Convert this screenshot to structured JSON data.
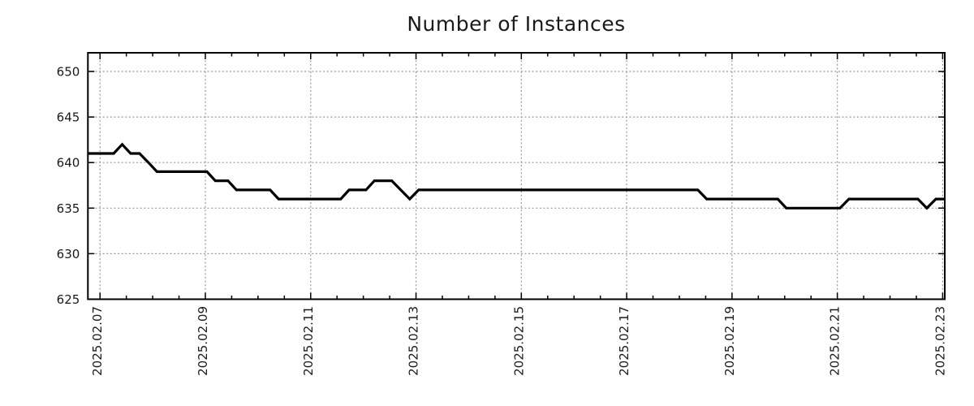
{
  "chart_data": {
    "type": "line",
    "title": "Number of Instances",
    "x_axis": {
      "tick_labels": [
        "2025.02.07",
        "2025.02.09",
        "2025.02.11",
        "2025.02.13",
        "2025.02.15",
        "2025.02.17",
        "2025.02.19",
        "2025.02.21",
        "2025.02.23"
      ],
      "tick_positions_days": [
        0,
        2,
        4,
        6,
        8,
        10,
        12,
        14,
        16
      ],
      "minor_tick_interval_days": 0.5,
      "range_days": [
        -0.23,
        16.04
      ]
    },
    "y_axis": {
      "ticks": [
        625,
        630,
        635,
        640,
        645,
        650
      ],
      "tick_labels": [
        "625",
        "630",
        "635",
        "640",
        "645",
        "650"
      ],
      "range": [
        625,
        652.05
      ]
    },
    "grid": true,
    "legend": false,
    "colors": {
      "line": "#000000",
      "grid": "#999999",
      "axis": "#000000",
      "text": "#1a1a1a",
      "background": "#ffffff"
    },
    "series": [
      {
        "points_t_days_value": [
          [
            -0.23,
            641
          ],
          [
            0.26,
            641
          ],
          [
            0.42,
            642
          ],
          [
            0.58,
            641
          ],
          [
            0.75,
            641
          ],
          [
            0.92,
            640
          ],
          [
            1.08,
            639
          ],
          [
            2.03,
            639
          ],
          [
            2.19,
            638
          ],
          [
            2.43,
            638
          ],
          [
            2.59,
            637
          ],
          [
            3.23,
            637
          ],
          [
            3.39,
            636
          ],
          [
            4.57,
            636
          ],
          [
            4.73,
            637
          ],
          [
            5.05,
            637
          ],
          [
            5.21,
            638
          ],
          [
            5.54,
            638
          ],
          [
            5.71,
            637
          ],
          [
            5.88,
            636
          ],
          [
            6.05,
            637
          ],
          [
            11.35,
            637
          ],
          [
            11.52,
            636
          ],
          [
            12.87,
            636
          ],
          [
            13.03,
            635
          ],
          [
            14.05,
            635
          ],
          [
            14.22,
            636
          ],
          [
            15.53,
            636
          ],
          [
            15.7,
            635
          ],
          [
            15.87,
            636
          ],
          [
            16.04,
            636
          ]
        ]
      }
    ]
  }
}
